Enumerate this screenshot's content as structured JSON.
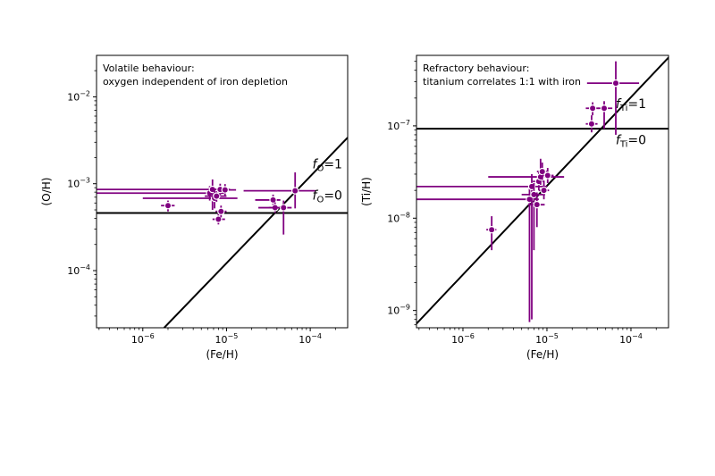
{
  "colors": {
    "points": "#800080",
    "lines": "#000000"
  },
  "chart_data": [
    {
      "type": "scatter",
      "xlabel": "(Fe/H)",
      "ylabel": "(O/H)",
      "x_scale": "log",
      "y_scale": "log",
      "xlim": [
        2.8e-07,
        0.00028
      ],
      "ylim": [
        2.2e-05,
        0.03
      ],
      "x_ticks": [
        {
          "value": 1e-06,
          "base": "10",
          "exp": "−6"
        },
        {
          "value": 1e-05,
          "base": "10",
          "exp": "−5"
        },
        {
          "value": 0.0001,
          "base": "10",
          "exp": "−4"
        }
      ],
      "y_ticks": [
        {
          "value": 0.0001,
          "base": "10",
          "exp": "−4"
        },
        {
          "value": 0.001,
          "base": "10",
          "exp": "−3"
        },
        {
          "value": 0.01,
          "base": "10",
          "exp": "−2"
        }
      ],
      "annotation_lines": [
        "Volatile behaviour:",
        "oxygen independent of iron depletion"
      ],
      "lines": [
        {
          "id": "f1",
          "label_main": "f",
          "label_sub": "O",
          "label_value": "=1",
          "points": [
            [
              1.8e-06,
              2.2e-05
            ],
            [
              0.00028,
              0.0034
            ]
          ],
          "label_at": [
            0.00016,
            0.0015
          ]
        },
        {
          "id": "f0",
          "label_main": "f",
          "label_sub": "O",
          "label_value": "=0",
          "points": [
            [
              2.8e-07,
              0.00046
            ],
            [
              0.00028,
              0.00046
            ]
          ],
          "label_at": [
            0.00016,
            0.00066
          ]
        }
      ],
      "points": [
        {
          "x": 2e-06,
          "y": 0.00056,
          "xlo": 1.65e-06,
          "xhi": 2.4e-06,
          "ylo": 0.00048,
          "yhi": 0.00064
        },
        {
          "x": 6.3e-06,
          "y": 0.00078,
          "xlo": 2.8e-07,
          "xhi": 9.5e-06,
          "ylo": 0.00064,
          "yhi": 0.00094
        },
        {
          "x": 6.8e-06,
          "y": 0.00086,
          "xlo": 2.8e-07,
          "xhi": 1.1e-05,
          "ylo": 0.0005,
          "yhi": 0.00112
        },
        {
          "x": 7.2e-06,
          "y": 0.00068,
          "xlo": 1e-06,
          "xhi": 1.35e-05,
          "ylo": 0.00052,
          "yhi": 0.00086
        },
        {
          "x": 7.6e-06,
          "y": 0.00072,
          "xlo": 5.5e-06,
          "xhi": 1e-05,
          "ylo": 0.00062,
          "yhi": 0.00082
        },
        {
          "x": 8e-06,
          "y": 0.00039,
          "xlo": 6.8e-06,
          "xhi": 9.6e-06,
          "ylo": 0.00034,
          "yhi": 0.00045
        },
        {
          "x": 8.6e-06,
          "y": 0.00048,
          "xlo": 7.4e-06,
          "xhi": 1e-05,
          "ylo": 0.00041,
          "yhi": 0.00056
        },
        {
          "x": 8.4e-06,
          "y": 0.00086,
          "xlo": 7.2e-06,
          "xhi": 9.8e-06,
          "ylo": 0.00074,
          "yhi": 0.001
        },
        {
          "x": 9.6e-06,
          "y": 0.00085,
          "xlo": 8.4e-06,
          "xhi": 1.3e-05,
          "ylo": 0.00073,
          "yhi": 0.00099
        },
        {
          "x": 3.6e-05,
          "y": 0.00065,
          "xlo": 2.2e-05,
          "xhi": 4.4e-05,
          "ylo": 0.00056,
          "yhi": 0.00075
        },
        {
          "x": 3.8e-05,
          "y": 0.00053,
          "xlo": 2.4e-05,
          "xhi": 4.6e-05,
          "ylo": 0.00046,
          "yhi": 0.00061
        },
        {
          "x": 4.8e-05,
          "y": 0.00053,
          "xlo": 3.2e-05,
          "xhi": 6e-05,
          "ylo": 0.00026,
          "yhi": 0.00064
        },
        {
          "x": 6.6e-05,
          "y": 0.00083,
          "xlo": 1.6e-05,
          "xhi": 0.000115,
          "ylo": 0.00052,
          "yhi": 0.00135
        }
      ]
    },
    {
      "type": "scatter",
      "xlabel": "(Fe/H)",
      "ylabel": "(Ti/H)",
      "x_scale": "log",
      "y_scale": "log",
      "xlim": [
        2.8e-07,
        0.00028
      ],
      "ylim": [
        6.5e-10,
        5.8e-07
      ],
      "x_ticks": [
        {
          "value": 1e-06,
          "base": "10",
          "exp": "−6"
        },
        {
          "value": 1e-05,
          "base": "10",
          "exp": "−5"
        },
        {
          "value": 0.0001,
          "base": "10",
          "exp": "−4"
        }
      ],
      "y_ticks": [
        {
          "value": 1e-09,
          "base": "10",
          "exp": "−9"
        },
        {
          "value": 1e-08,
          "base": "10",
          "exp": "−8"
        },
        {
          "value": 1e-07,
          "base": "10",
          "exp": "−7"
        }
      ],
      "annotation_lines": [
        "Refractory behaviour:",
        "titanium correlates 1:1 with iron"
      ],
      "lines": [
        {
          "id": "f1",
          "label_main": "f",
          "label_sub": "Ti",
          "label_value": "=1",
          "points": [
            [
              2.8e-07,
              7.2e-10
            ],
            [
              0.00028,
              5.5e-07
            ]
          ],
          "label_at": [
            0.0001,
            1.55e-07
          ]
        },
        {
          "id": "f0",
          "label_main": "f",
          "label_sub": "Ti",
          "label_value": "=0",
          "points": [
            [
              2.8e-07,
              9.3e-08
            ],
            [
              0.00028,
              9.3e-08
            ]
          ],
          "label_at": [
            0.0001,
            6.3e-08
          ]
        }
      ],
      "points": [
        {
          "x": 2.2e-06,
          "y": 7.5e-09,
          "xlo": 1.9e-06,
          "xhi": 2.5e-06,
          "ylo": 4.5e-09,
          "yhi": 1.05e-08
        },
        {
          "x": 6.2e-06,
          "y": 1.6e-08,
          "xlo": 2.8e-07,
          "xhi": 8e-06,
          "ylo": 7.5e-10,
          "yhi": 2.2e-08
        },
        {
          "x": 6.6e-06,
          "y": 2.2e-08,
          "xlo": 2.8e-07,
          "xhi": 1e-05,
          "ylo": 8e-10,
          "yhi": 3e-08
        },
        {
          "x": 7e-06,
          "y": 1.8e-08,
          "xlo": 5e-06,
          "xhi": 9.5e-06,
          "ylo": 4.5e-09,
          "yhi": 2.4e-08
        },
        {
          "x": 7.6e-06,
          "y": 1.4e-08,
          "xlo": 6e-06,
          "xhi": 9.4e-06,
          "ylo": 8e-09,
          "yhi": 1.9e-08
        },
        {
          "x": 8e-06,
          "y": 2.5e-08,
          "xlo": 6.8e-06,
          "xhi": 9.4e-06,
          "ylo": 2e-08,
          "yhi": 3.2e-08
        },
        {
          "x": 8.4e-06,
          "y": 2.8e-08,
          "xlo": 2e-06,
          "xhi": 1.6e-05,
          "ylo": 2.3e-08,
          "yhi": 4.4e-08
        },
        {
          "x": 8.8e-06,
          "y": 3.2e-08,
          "xlo": 7.6e-06,
          "xhi": 1e-05,
          "ylo": 2.6e-08,
          "yhi": 4e-08
        },
        {
          "x": 9.2e-06,
          "y": 2e-08,
          "xlo": 8e-06,
          "xhi": 1.06e-05,
          "ylo": 1.6e-08,
          "yhi": 2.5e-08
        },
        {
          "x": 1.02e-05,
          "y": 2.9e-08,
          "xlo": 8.8e-06,
          "xhi": 1.2e-05,
          "ylo": 2.4e-08,
          "yhi": 3.5e-08
        },
        {
          "x": 3.4e-05,
          "y": 1.05e-07,
          "xlo": 2.9e-05,
          "xhi": 4e-05,
          "ylo": 8.5e-08,
          "yhi": 1.3e-07
        },
        {
          "x": 3.5e-05,
          "y": 1.55e-07,
          "xlo": 2.9e-05,
          "xhi": 4.2e-05,
          "ylo": 1.3e-07,
          "yhi": 1.8e-07
        },
        {
          "x": 4.8e-05,
          "y": 1.55e-07,
          "xlo": 4e-05,
          "xhi": 6e-05,
          "ylo": 9.3e-08,
          "yhi": 1.85e-07
        },
        {
          "x": 6.6e-05,
          "y": 2.9e-07,
          "xlo": 3e-05,
          "xhi": 0.000125,
          "ylo": 8e-08,
          "yhi": 5e-07
        }
      ]
    }
  ]
}
